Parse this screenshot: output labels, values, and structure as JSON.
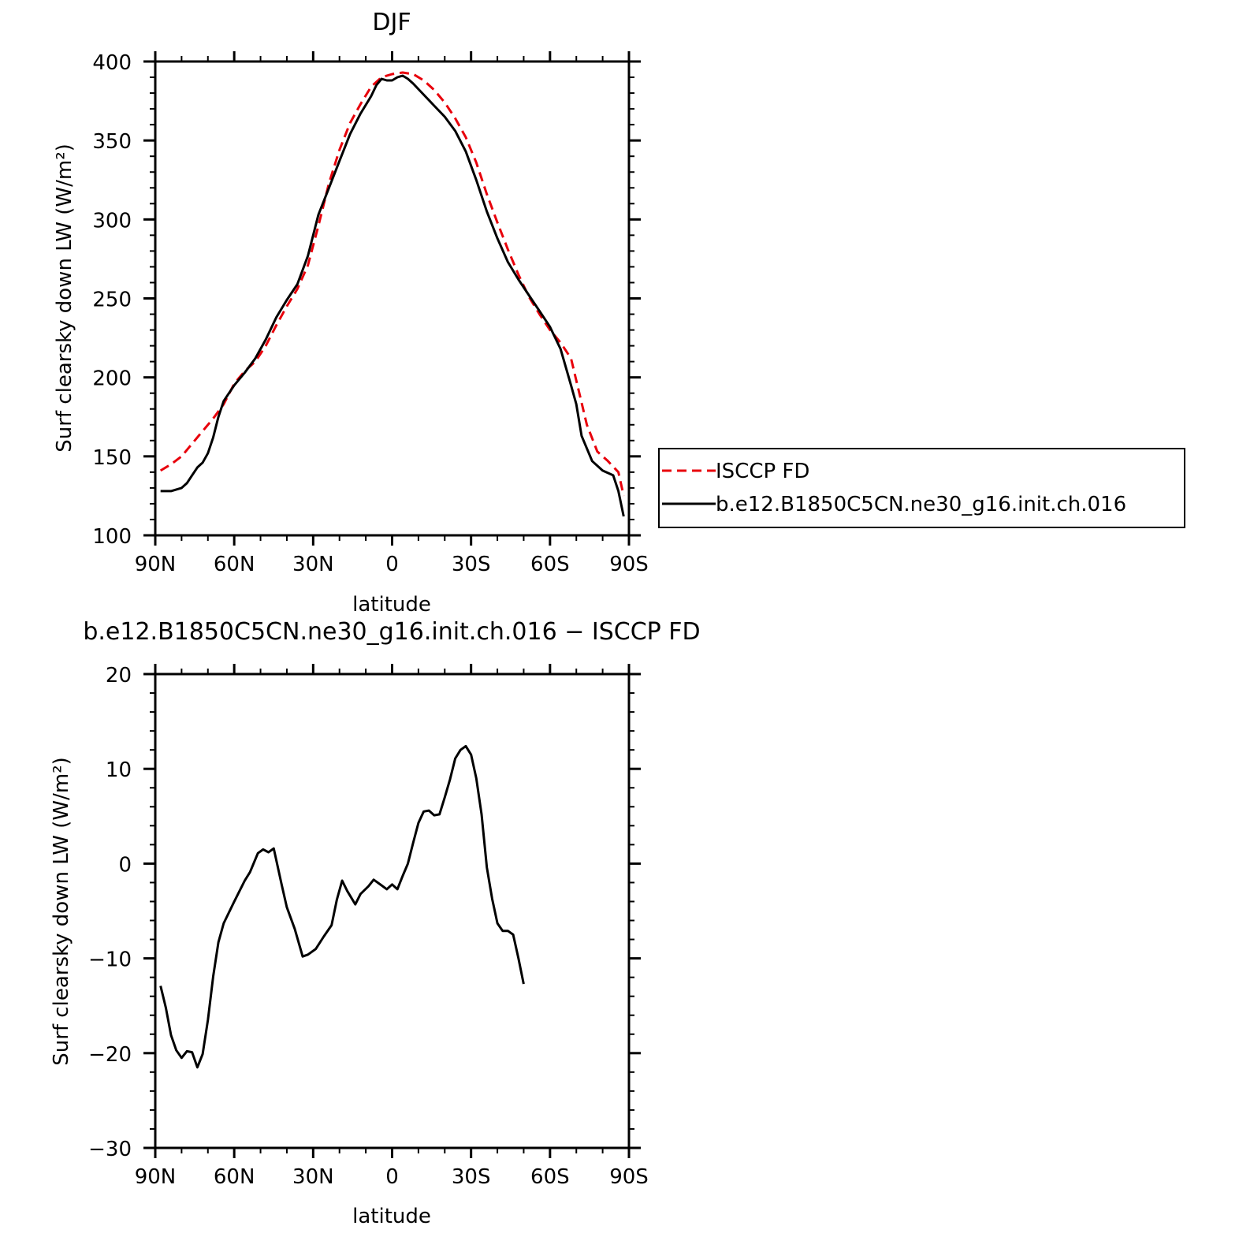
{
  "chart_data": [
    {
      "type": "line",
      "title": "DJF",
      "xlabel": "latitude",
      "ylabel": "Surf clearsky down LW (W/m²)",
      "xlim": [
        90,
        -90
      ],
      "ylim": [
        100,
        400
      ],
      "x_ticks": [
        90,
        60,
        30,
        0,
        -30,
        -60,
        -90
      ],
      "x_tick_labels": [
        "90N",
        "60N",
        "30N",
        "0",
        "30S",
        "60S",
        "90S"
      ],
      "y_ticks": [
        100,
        150,
        200,
        250,
        300,
        350,
        400
      ],
      "y_tick_labels": [
        "100",
        "150",
        "200",
        "250",
        "300",
        "350",
        "400"
      ],
      "legend_position": "right",
      "series": [
        {
          "name": "ISCCP FD",
          "color": "#e8000b",
          "dash": "dashed",
          "points": [
            [
              88,
              141
            ],
            [
              84,
              145
            ],
            [
              80,
              150
            ],
            [
              76,
              158
            ],
            [
              72,
              166
            ],
            [
              68,
              174
            ],
            [
              64,
              183
            ],
            [
              60,
              196
            ],
            [
              56,
              204
            ],
            [
              52,
              210
            ],
            [
              48,
              220
            ],
            [
              44,
              233
            ],
            [
              40,
              245
            ],
            [
              36,
              256
            ],
            [
              32,
              271
            ],
            [
              28,
              296
            ],
            [
              24,
              323
            ],
            [
              20,
              344
            ],
            [
              16,
              361
            ],
            [
              12,
              373
            ],
            [
              8,
              384
            ],
            [
              4,
              390
            ],
            [
              0,
              392
            ],
            [
              -4,
              393
            ],
            [
              -8,
              392
            ],
            [
              -12,
              388
            ],
            [
              -16,
              382
            ],
            [
              -20,
              374
            ],
            [
              -24,
              364
            ],
            [
              -28,
              352
            ],
            [
              -32,
              336
            ],
            [
              -36,
              316
            ],
            [
              -40,
              298
            ],
            [
              -44,
              281
            ],
            [
              -48,
              265
            ],
            [
              -52,
              251
            ],
            [
              -56,
              240
            ],
            [
              -60,
              230
            ],
            [
              -64,
              222
            ],
            [
              -68,
              212
            ],
            [
              -70,
              198
            ],
            [
              -74,
              170
            ],
            [
              -78,
              153
            ],
            [
              -82,
              147
            ],
            [
              -86,
              140
            ],
            [
              -88,
              125
            ]
          ]
        },
        {
          "name": "b.e12.B1850C5CN.ne30_g16.init.ch.016",
          "color": "#000000",
          "dash": "solid",
          "points": [
            [
              88,
              128
            ],
            [
              84,
              128
            ],
            [
              80,
              130
            ],
            [
              78,
              133
            ],
            [
              76,
              138
            ],
            [
              74,
              143
            ],
            [
              72,
              146
            ],
            [
              70,
              152
            ],
            [
              68,
              162
            ],
            [
              66,
              175
            ],
            [
              64,
              185
            ],
            [
              60,
              195
            ],
            [
              56,
              203
            ],
            [
              52,
              212
            ],
            [
              48,
              224
            ],
            [
              44,
              238
            ],
            [
              40,
              249
            ],
            [
              36,
              259
            ],
            [
              32,
              277
            ],
            [
              28,
              303
            ],
            [
              24,
              320
            ],
            [
              20,
              337
            ],
            [
              16,
              354
            ],
            [
              12,
              367
            ],
            [
              8,
              378
            ],
            [
              6,
              385
            ],
            [
              4,
              389
            ],
            [
              2,
              388
            ],
            [
              0,
              388
            ],
            [
              -2,
              390
            ],
            [
              -4,
              391
            ],
            [
              -6,
              389
            ],
            [
              -8,
              386
            ],
            [
              -12,
              379
            ],
            [
              -16,
              372
            ],
            [
              -20,
              365
            ],
            [
              -24,
              356
            ],
            [
              -28,
              343
            ],
            [
              -32,
              325
            ],
            [
              -36,
              305
            ],
            [
              -40,
              288
            ],
            [
              -44,
              273
            ],
            [
              -48,
              262
            ],
            [
              -52,
              252
            ],
            [
              -56,
              242
            ],
            [
              -60,
              232
            ],
            [
              -64,
              218
            ],
            [
              -68,
              195
            ],
            [
              -70,
              183
            ],
            [
              -72,
              163
            ],
            [
              -76,
              147
            ],
            [
              -80,
              141
            ],
            [
              -84,
              138
            ],
            [
              -86,
              128
            ],
            [
              -88,
              112
            ]
          ]
        }
      ]
    },
    {
      "type": "line",
      "title": "b.e12.B1850C5CN.ne30_g16.init.ch.016 − ISCCP FD",
      "xlabel": "latitude",
      "ylabel": "Surf clearsky down LW (W/m²)",
      "xlim": [
        90,
        -90
      ],
      "ylim": [
        -30,
        20
      ],
      "x_ticks": [
        90,
        60,
        30,
        0,
        -30,
        -60,
        -90
      ],
      "x_tick_labels": [
        "90N",
        "60N",
        "30N",
        "0",
        "30S",
        "60S",
        "90S"
      ],
      "y_ticks": [
        -30,
        -20,
        -10,
        0,
        10,
        20
      ],
      "y_tick_labels": [
        "−30",
        "−20",
        "−10",
        "0",
        "10",
        "20"
      ],
      "series": [
        {
          "color": "#000000",
          "dash": "solid",
          "points": [
            [
              88,
              -12.9
            ],
            [
              86,
              -15.2
            ],
            [
              84,
              -18.1
            ],
            [
              82,
              -19.7
            ],
            [
              80,
              -20.5
            ],
            [
              78,
              -19.8
            ],
            [
              76,
              -19.9
            ],
            [
              74,
              -21.5
            ],
            [
              72,
              -20.1
            ],
            [
              70,
              -16.5
            ],
            [
              68,
              -11.9
            ],
            [
              66,
              -8.3
            ],
            [
              64,
              -6.3
            ],
            [
              60,
              -4.0
            ],
            [
              56,
              -1.8
            ],
            [
              54,
              -0.9
            ],
            [
              51,
              1.1
            ],
            [
              49,
              1.5
            ],
            [
              47,
              1.2
            ],
            [
              45,
              1.6
            ],
            [
              42,
              -2.2
            ],
            [
              40,
              -4.6
            ],
            [
              37,
              -6.9
            ],
            [
              34,
              -9.8
            ],
            [
              32,
              -9.6
            ],
            [
              29,
              -9.0
            ],
            [
              26,
              -7.7
            ],
            [
              23,
              -6.5
            ],
            [
              21,
              -3.8
            ],
            [
              19,
              -1.8
            ],
            [
              17,
              -2.9
            ],
            [
              14,
              -4.3
            ],
            [
              12,
              -3.2
            ],
            [
              9,
              -2.4
            ],
            [
              7,
              -1.7
            ],
            [
              4,
              -2.3
            ],
            [
              2,
              -2.7
            ],
            [
              0,
              -2.2
            ],
            [
              -2,
              -2.7
            ],
            [
              -4,
              -1.3
            ],
            [
              -6,
              0.0
            ],
            [
              -8,
              2.2
            ],
            [
              -10,
              4.3
            ],
            [
              -12,
              5.5
            ],
            [
              -14,
              5.6
            ],
            [
              -16,
              5.1
            ],
            [
              -18,
              5.2
            ],
            [
              -20,
              7.0
            ],
            [
              -22,
              8.9
            ],
            [
              -24,
              11.1
            ],
            [
              -26,
              12.0
            ],
            [
              -28,
              12.4
            ],
            [
              -30,
              11.5
            ],
            [
              -32,
              9.0
            ],
            [
              -34,
              5.2
            ],
            [
              -36,
              -0.4
            ],
            [
              -38,
              -3.7
            ],
            [
              -40,
              -6.3
            ],
            [
              -42,
              -7.1
            ],
            [
              -44,
              -7.1
            ],
            [
              -46,
              -7.5
            ],
            [
              -48,
              -10.0
            ],
            [
              -50,
              -12.7
            ]
          ]
        }
      ]
    }
  ]
}
